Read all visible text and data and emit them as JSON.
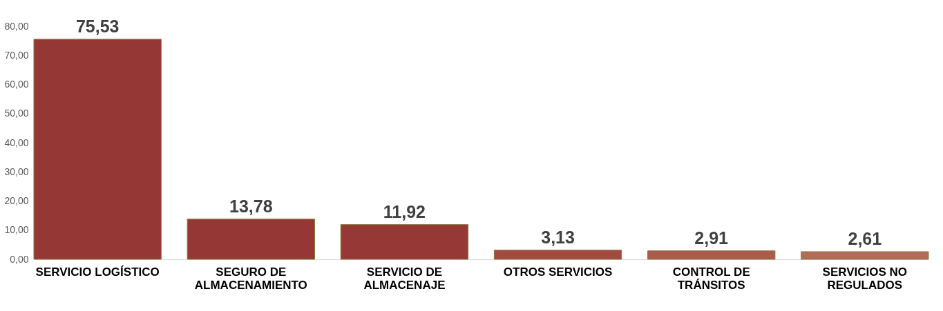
{
  "chart_data": {
    "type": "bar",
    "categories": [
      "SERVICIO LOGÍSTICO",
      "SEGURO DE ALMACENAMIENTO",
      "SERVICIO DE ALMACENAJE",
      "OTROS SERVICIOS",
      "CONTROL DE TRÁNSITOS",
      "SERVICIOS NO REGULADOS"
    ],
    "values": [
      75.53,
      13.78,
      11.92,
      3.13,
      2.91,
      2.61
    ],
    "value_labels": [
      "75,53",
      "13,78",
      "11,92",
      "3,13",
      "2,91",
      "2,61"
    ],
    "colors": [
      "#953735",
      "#953735",
      "#963836",
      "#a24a40",
      "#ab5a4c",
      "#b56a5a"
    ],
    "ylim": [
      0,
      80
    ],
    "yticks": [
      {
        "value": 0,
        "label": "0,00"
      },
      {
        "value": 10,
        "label": "10,00"
      },
      {
        "value": 20,
        "label": "20,00"
      },
      {
        "value": 30,
        "label": "30,00"
      },
      {
        "value": 40,
        "label": "40,00"
      },
      {
        "value": 50,
        "label": "50,00"
      },
      {
        "value": 60,
        "label": "60,00"
      },
      {
        "value": 70,
        "label": "70,00"
      },
      {
        "value": 80,
        "label": "80,00"
      }
    ],
    "grid": false
  }
}
